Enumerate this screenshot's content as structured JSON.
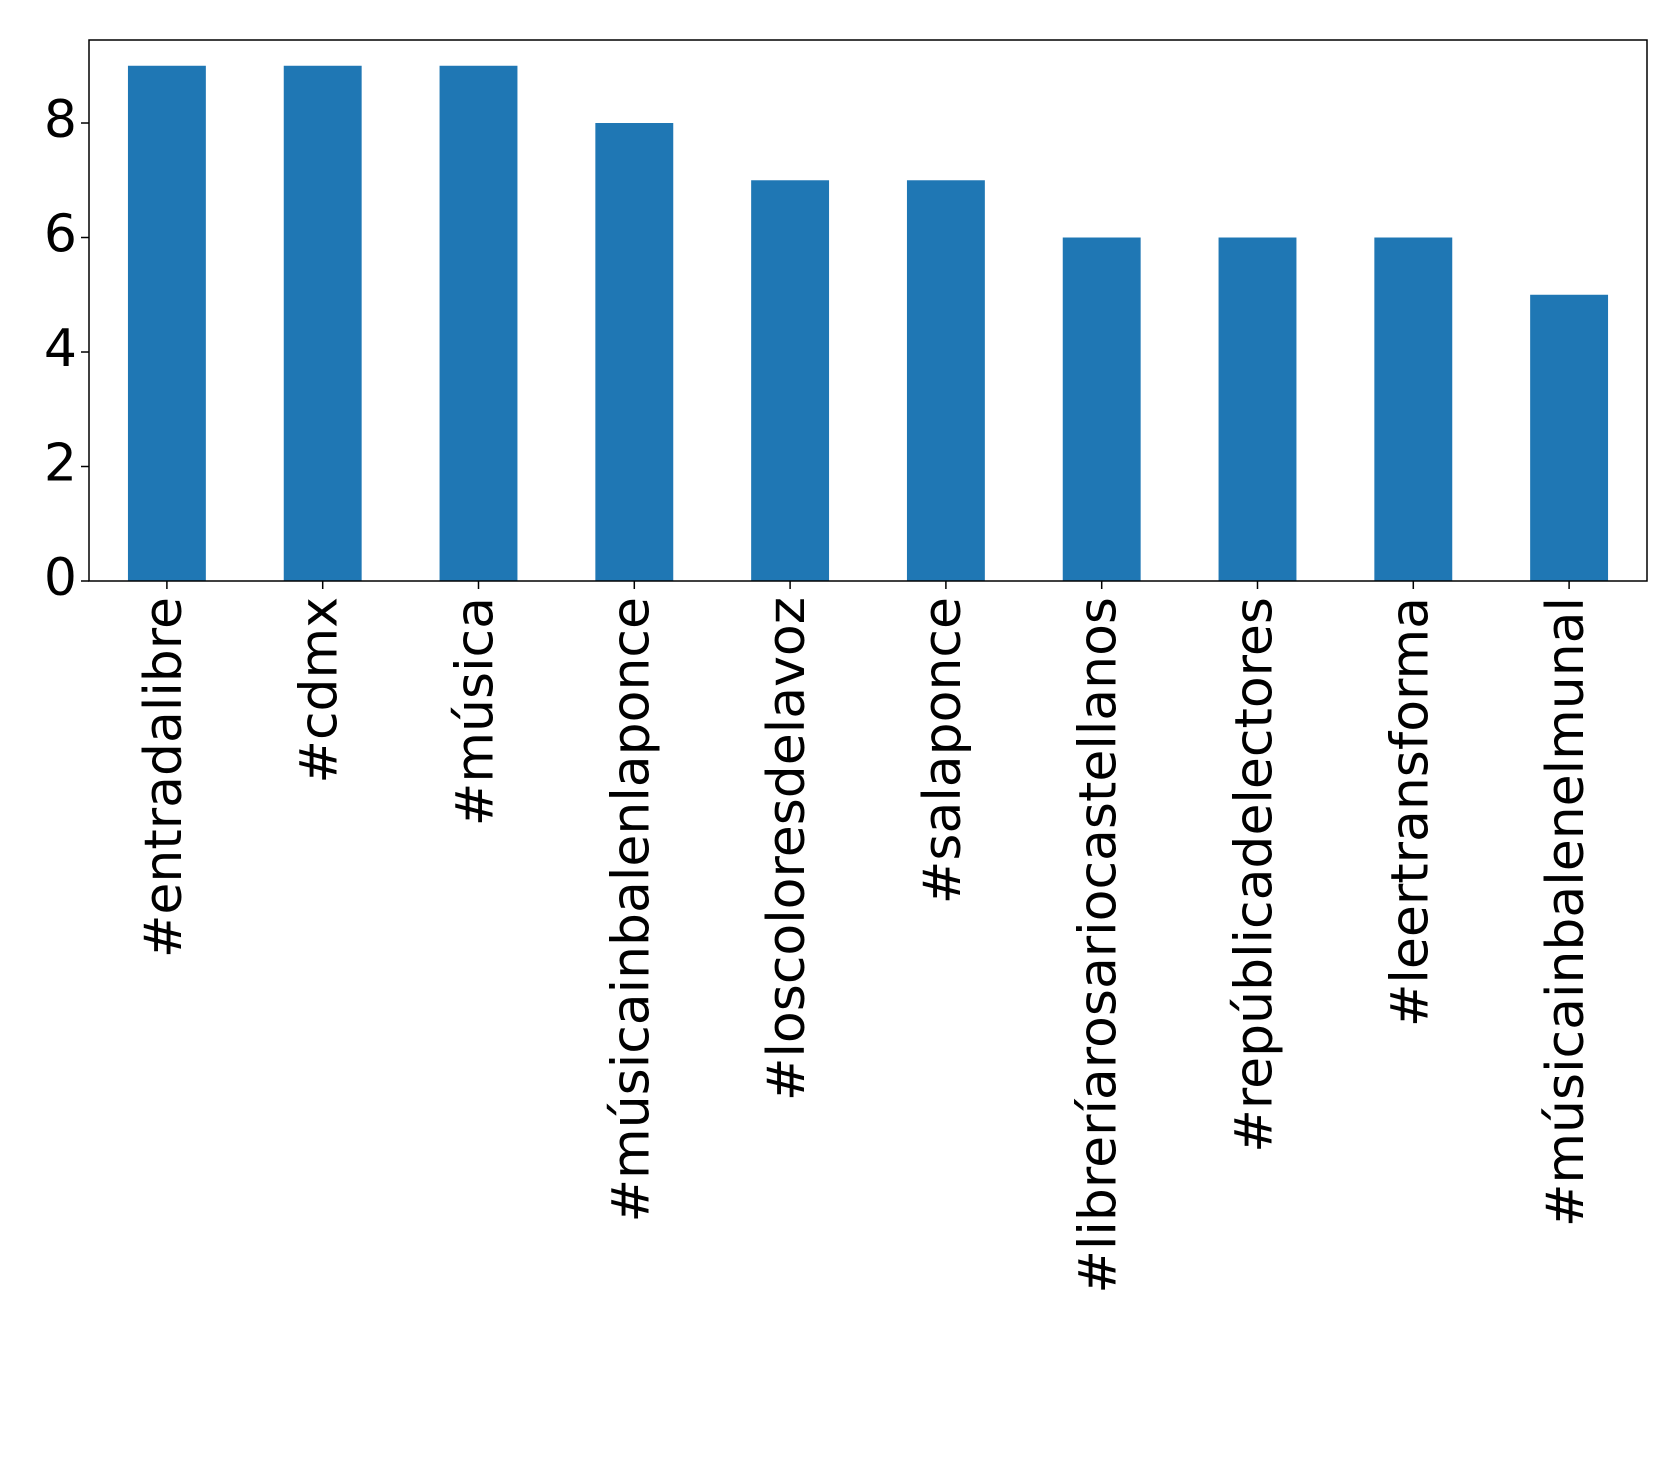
{
  "chart_data": {
    "type": "bar",
    "categories": [
      "#entradalibre",
      "#cdmx",
      "#música",
      "#músicainbalenlaponce",
      "#loscoloresdelavoz",
      "#salaponce",
      "#libreríarosariocastellanos",
      "#repúblicadelectores",
      "#leertransforma",
      "#músicainbalenelmunal"
    ],
    "values": [
      9,
      9,
      9,
      8,
      7,
      7,
      6,
      6,
      6,
      5
    ],
    "color": "#1f77b4",
    "ylim": [
      0,
      9.45
    ],
    "yticks": [
      0,
      2,
      4,
      6,
      8
    ],
    "grid": false
  }
}
